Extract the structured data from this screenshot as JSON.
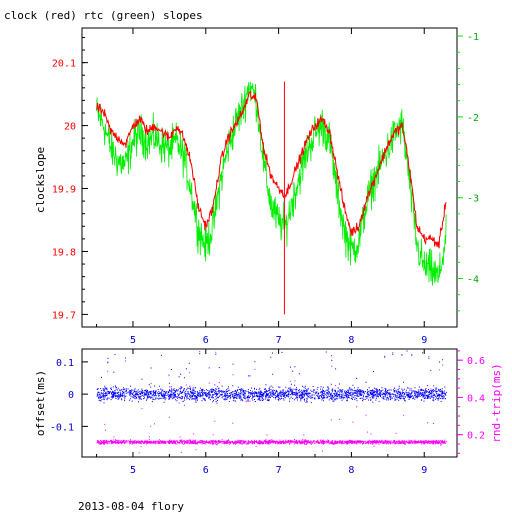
{
  "title": "clock (red) rtc (green) slopes",
  "footer": "2013-08-04 flory",
  "colors": {
    "clock": "#ff0000",
    "rtc": "#00ee00",
    "offset": "#0000ff",
    "rndtrip": "#ff00ff",
    "axis": "#000000",
    "tick_blue": "#0000cc"
  },
  "chart_data": [
    {
      "type": "line",
      "title": "clock (red) rtc (green) slopes",
      "ylabel": "clockslope",
      "y2label": "",
      "xlim": [
        4.3,
        9.45
      ],
      "ylim": [
        19.68,
        20.155
      ],
      "y2lim": [
        -4.6,
        -0.9
      ],
      "xticks": [
        5,
        6,
        7,
        8,
        9
      ],
      "yticks": [
        19.7,
        19.8,
        19.9,
        20,
        20.1
      ],
      "y2ticks": [
        -1,
        -2,
        -3,
        -4
      ],
      "grid": false,
      "series": [
        {
          "name": "clock",
          "axis": "left",
          "x": [
            4.5,
            4.6,
            4.7,
            4.8,
            4.9,
            5.0,
            5.1,
            5.2,
            5.3,
            5.4,
            5.5,
            5.6,
            5.7,
            5.8,
            5.9,
            6.0,
            6.1,
            6.2,
            6.3,
            6.4,
            6.5,
            6.6,
            6.7,
            6.8,
            6.9,
            7.0,
            7.1,
            7.2,
            7.3,
            7.4,
            7.5,
            7.6,
            7.7,
            7.8,
            7.9,
            8.0,
            8.1,
            8.2,
            8.3,
            8.4,
            8.5,
            8.6,
            8.7,
            8.8,
            8.9,
            9.0,
            9.1,
            9.2,
            9.3
          ],
          "values": [
            20.03,
            20.02,
            19.99,
            19.98,
            19.97,
            20.0,
            20.01,
            19.99,
            20.0,
            19.99,
            19.98,
            20.0,
            19.98,
            19.94,
            19.87,
            19.84,
            19.87,
            19.94,
            19.98,
            20.0,
            20.02,
            20.05,
            20.04,
            19.96,
            19.92,
            19.9,
            19.89,
            19.92,
            19.95,
            19.98,
            20.0,
            20.01,
            19.99,
            19.93,
            19.87,
            19.83,
            19.84,
            19.88,
            19.91,
            19.94,
            19.97,
            19.99,
            20.0,
            19.93,
            19.84,
            19.82,
            19.82,
            19.81,
            19.88
          ]
        },
        {
          "name": "rtc",
          "axis": "right",
          "x": [
            4.5,
            4.6,
            4.7,
            4.8,
            4.9,
            5.0,
            5.1,
            5.2,
            5.3,
            5.4,
            5.5,
            5.6,
            5.7,
            5.8,
            5.9,
            6.0,
            6.1,
            6.2,
            6.3,
            6.4,
            6.5,
            6.6,
            6.7,
            6.8,
            6.9,
            7.0,
            7.1,
            7.2,
            7.3,
            7.4,
            7.5,
            7.6,
            7.7,
            7.8,
            7.9,
            8.0,
            8.1,
            8.2,
            8.3,
            8.4,
            8.5,
            8.6,
            8.7,
            8.8,
            8.9,
            9.0,
            9.1,
            9.2,
            9.3
          ],
          "values": [
            -1.95,
            -2.1,
            -2.4,
            -2.55,
            -2.6,
            -2.3,
            -2.2,
            -2.3,
            -2.25,
            -2.35,
            -2.4,
            -2.3,
            -2.5,
            -2.9,
            -3.4,
            -3.6,
            -3.35,
            -2.8,
            -2.4,
            -2.1,
            -1.9,
            -1.6,
            -1.8,
            -2.6,
            -3.1,
            -3.3,
            -3.35,
            -3.0,
            -2.7,
            -2.4,
            -2.2,
            -2.1,
            -2.3,
            -2.9,
            -3.4,
            -3.65,
            -3.55,
            -3.1,
            -2.8,
            -2.6,
            -2.4,
            -2.2,
            -2.1,
            -2.8,
            -3.6,
            -3.85,
            -3.9,
            -4.0,
            -3.5
          ]
        }
      ]
    },
    {
      "type": "scatter",
      "ylabel": "offset(ms)",
      "y2label": "rnd-trip(ms)",
      "xlim": [
        4.3,
        9.45
      ],
      "ylim": [
        -0.195,
        0.14
      ],
      "y2lim": [
        0.08,
        0.66
      ],
      "xticks": [
        5,
        6,
        7,
        8,
        9
      ],
      "yticks": [
        0.1,
        0,
        -0.1
      ],
      "y2ticks": [
        0.6,
        0.4,
        0.2
      ],
      "grid": false,
      "series": [
        {
          "name": "offset",
          "axis": "left",
          "x_range": [
            4.5,
            9.3
          ],
          "center": 0.0,
          "spread": 0.03
        },
        {
          "name": "rnd-trip",
          "axis": "right",
          "x_range": [
            4.5,
            9.3
          ],
          "center": 0.16,
          "spread": 0.015
        }
      ]
    }
  ],
  "labels": {
    "top_x": [
      "5",
      "6",
      "7",
      "8",
      "9"
    ],
    "top_y": [
      "19.7",
      "19.8",
      "19.9",
      "20",
      "20.1"
    ],
    "top_y2": [
      "-1",
      "-2",
      "-3",
      "-4"
    ],
    "bot_x": [
      "5",
      "6",
      "7",
      "8",
      "9"
    ],
    "bot_y": [
      "0.1",
      "0",
      "-0.1"
    ],
    "bot_y2": [
      "0.6",
      "0.4",
      "0.2"
    ]
  }
}
